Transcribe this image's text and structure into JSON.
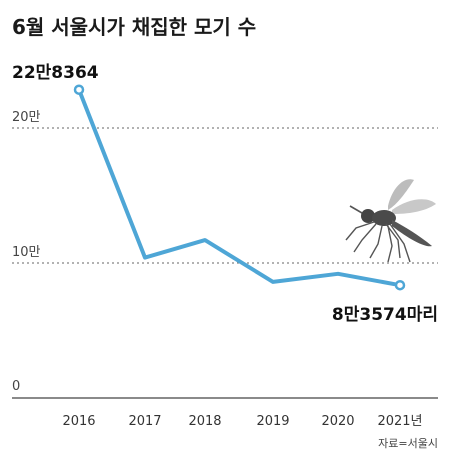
{
  "chart_data": {
    "type": "line",
    "title": "6월 서울시가 채집한 모기 수",
    "x": [
      "2016",
      "2017",
      "2018",
      "2019",
      "2020",
      "2021년"
    ],
    "series": [
      {
        "values": [
          228364,
          104000,
          117000,
          86000,
          92000,
          83574
        ],
        "color": "#4ea6d6"
      }
    ],
    "y_ticks": [
      {
        "value": 0,
        "label": "0"
      },
      {
        "value": 100000,
        "label": "10만"
      },
      {
        "value": 200000,
        "label": "20만"
      }
    ],
    "ylim": [
      0,
      200000
    ],
    "grid": "dashed horizontal at 10만 and 20만",
    "annotations": [
      {
        "point": 0,
        "text": "22만8364"
      },
      {
        "point": 5,
        "text": "8만3574마리"
      }
    ],
    "xlabel": "",
    "ylabel": ""
  },
  "source": "자료=서울시",
  "icons": [
    "mosquito-icon"
  ]
}
